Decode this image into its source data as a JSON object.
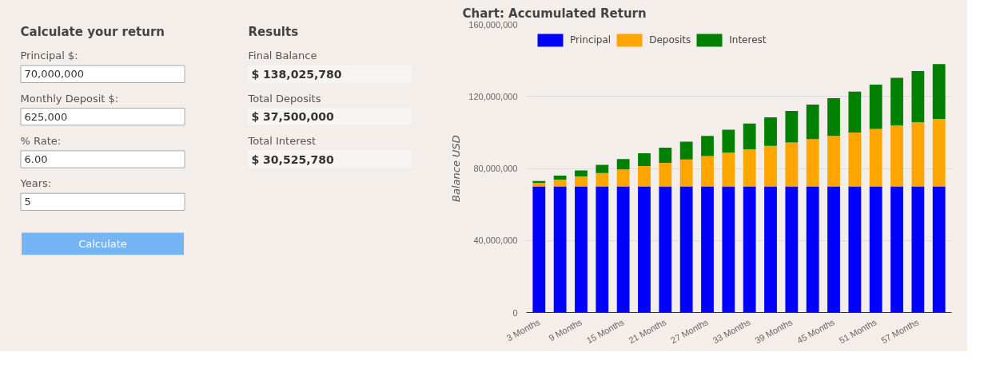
{
  "chart_data": [
    {
      "type": "other",
      "title": "Calculate your return",
      "annotations": [
        "Principal $:",
        "70,000,000",
        "Monthly Deposit $:",
        "625,000",
        "% Rate:",
        "6.00",
        "Years:",
        "5",
        "Calculate"
      ]
    },
    {
      "type": "other",
      "title": "Results",
      "annotations": [
        "Final Balance",
        "$ 138,025,780",
        "Total Deposits",
        "$ 37,500,000",
        "Total Interest",
        "$ 30,525,780"
      ]
    },
    {
      "type": "bar",
      "title": "Chart: Accumulated Return",
      "ylabel": "Balance USD",
      "stacked": true,
      "grid": "y",
      "legend": "top left",
      "categories": [
        "3 Months",
        null,
        "9 Months",
        null,
        "15 Months",
        null,
        "21 Months",
        null,
        "27 Months",
        null,
        "33 Months",
        null,
        "39 Months",
        null,
        "45 Months",
        null,
        "51 Months",
        null,
        "57 Months",
        null
      ],
      "series": [
        {
          "name": "Principal",
          "color": "#0000ff",
          "values": [
            70000000,
            70000000,
            70000000,
            70000000,
            70000000,
            70000000,
            70000000,
            70000000,
            70000000,
            70000000,
            70000000,
            70000000,
            70000000,
            70000000,
            70000000,
            70000000,
            70000000,
            70000000,
            70000000,
            70000000
          ]
        },
        {
          "name": "Deposits",
          "color": "#ffa500",
          "values": [
            1900000,
            3800000,
            5600000,
            7500000,
            9400000,
            11300000,
            13100000,
            15000000,
            16900000,
            18800000,
            20600000,
            22500000,
            24400000,
            26300000,
            28100000,
            30000000,
            31900000,
            33800000,
            35600000,
            37500000
          ]
        },
        {
          "name": "Interest",
          "color": "#008000",
          "values": [
            1100000,
            2200000,
            3300000,
            4500000,
            5800000,
            7100000,
            8400000,
            9800000,
            11200000,
            12700000,
            14300000,
            15900000,
            17500000,
            19200000,
            20900000,
            22700000,
            24600000,
            26500000,
            28500000,
            30500000
          ]
        }
      ],
      "ylim": [
        0,
        160000000
      ],
      "yticks": [
        0,
        {
          "value": 40000000,
          "label": "40,000,000"
        },
        {
          "value": 80000000,
          "label": "80,000,000"
        },
        {
          "value": 120000000,
          "label": "120,000,000"
        },
        {
          "value": 160000000,
          "label": "160,000,000"
        }
      ]
    }
  ]
}
